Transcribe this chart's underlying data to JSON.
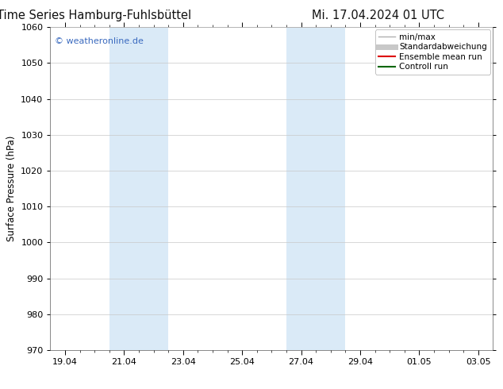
{
  "title_left": "ENS Time Series Hamburg-Fuhlsbüttel",
  "title_right": "Mi. 17.04.2024 01 UTC",
  "ylabel": "Surface Pressure (hPa)",
  "ylim": [
    970,
    1060
  ],
  "yticks": [
    970,
    980,
    990,
    1000,
    1010,
    1020,
    1030,
    1040,
    1050,
    1060
  ],
  "x_tick_labels": [
    "19.04",
    "21.04",
    "23.04",
    "25.04",
    "27.04",
    "29.04",
    "01.05",
    "03.05"
  ],
  "x_tick_positions": [
    0,
    2,
    4,
    6,
    8,
    10,
    12,
    14
  ],
  "xlim": [
    -0.5,
    14.5
  ],
  "shaded_regions": [
    {
      "xmin": 1.5,
      "xmax": 3.5,
      "color": "#daeaf7"
    },
    {
      "xmin": 7.5,
      "xmax": 9.5,
      "color": "#daeaf7"
    }
  ],
  "watermark_text": "© weatheronline.de",
  "watermark_color": "#3a6abf",
  "legend_items": [
    {
      "label": "min/max",
      "color": "#b0b0b0",
      "lw": 1.0,
      "style": "solid"
    },
    {
      "label": "Standardabweichung",
      "color": "#c8c8c8",
      "lw": 5.0,
      "style": "solid"
    },
    {
      "label": "Ensemble mean run",
      "color": "#dd0000",
      "lw": 1.5,
      "style": "solid"
    },
    {
      "label": "Controll run",
      "color": "#006600",
      "lw": 1.5,
      "style": "solid"
    }
  ],
  "bg_color": "#ffffff",
  "plot_bg_color": "#ffffff",
  "grid_color": "#c8c8c8",
  "spine_color": "#888888",
  "title_fontsize": 10.5,
  "tick_fontsize": 8,
  "ylabel_fontsize": 8.5,
  "legend_fontsize": 7.5,
  "watermark_fontsize": 8
}
